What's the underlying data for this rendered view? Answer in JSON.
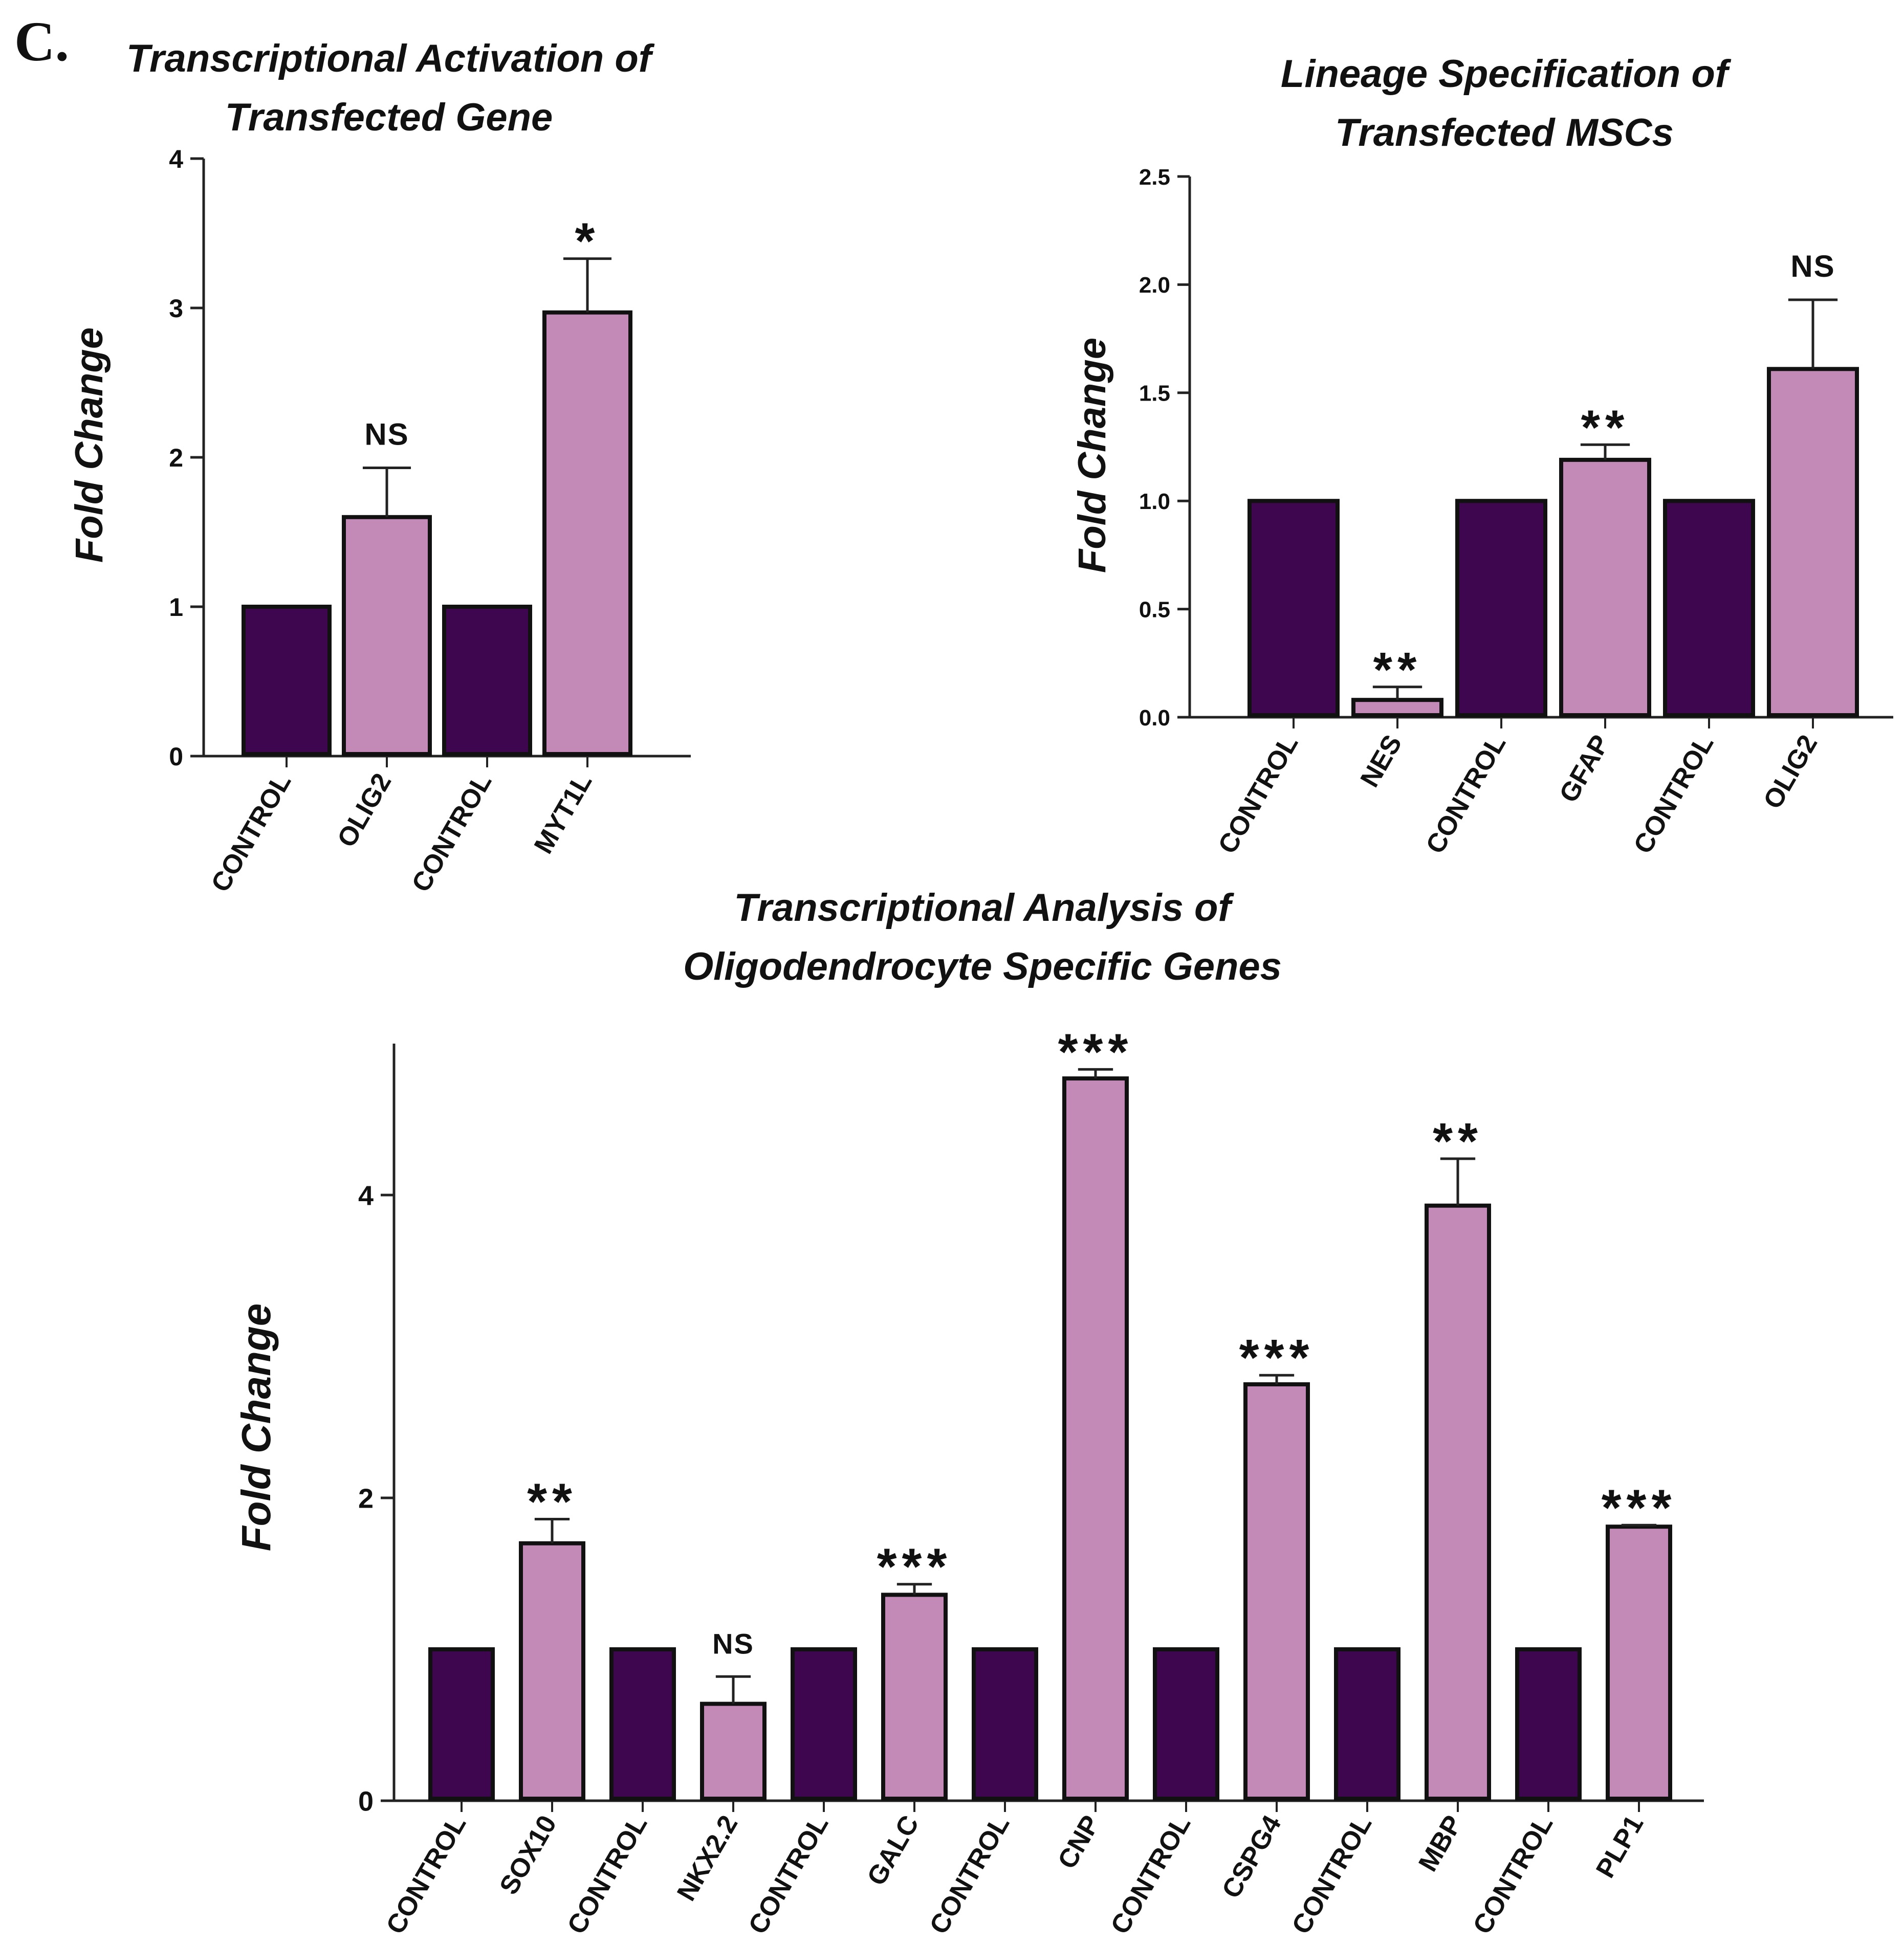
{
  "panel_label": "C.",
  "colors": {
    "control_bar": "#3f0650",
    "treatment_bar": "#c48ab7",
    "outline": "#111111"
  },
  "chart_data": [
    {
      "type": "bar",
      "title": [
        "Transcriptional Activation of",
        "Transfected Gene"
      ],
      "xlabel": "",
      "ylabel": "Fold Change",
      "ylim": [
        0,
        4
      ],
      "yticks": [
        "0",
        "1",
        "2",
        "3",
        "4"
      ],
      "grid": false,
      "categories": [
        "CONTROL",
        "OLIG2",
        "CONTROL",
        "MYT1L"
      ],
      "values": [
        1.0,
        1.6,
        1.0,
        2.97
      ],
      "errors": [
        0,
        0.33,
        0,
        0.36
      ],
      "groups": [
        "control",
        "treatment",
        "control",
        "treatment"
      ],
      "significance": [
        "",
        "NS",
        "",
        "*"
      ]
    },
    {
      "type": "bar",
      "title": [
        "Lineage Specification of",
        "Transfected MSCs"
      ],
      "xlabel": "",
      "ylabel": "Fold Change",
      "ylim": [
        0,
        2.5
      ],
      "yticks": [
        "0.0",
        "0.5",
        "1.0",
        "1.5",
        "2.0",
        "2.5"
      ],
      "grid": false,
      "categories": [
        "CONTROL",
        "NES",
        "CONTROL",
        "GFAP",
        "CONTROL",
        "OLIG2"
      ],
      "values": [
        1.0,
        0.08,
        1.0,
        1.19,
        1.0,
        1.61
      ],
      "errors": [
        0,
        0.06,
        0,
        0.07,
        0,
        0.32
      ],
      "groups": [
        "control",
        "treatment",
        "control",
        "treatment",
        "control",
        "treatment"
      ],
      "significance": [
        "",
        "**",
        "",
        "**",
        "",
        "NS"
      ]
    },
    {
      "type": "bar",
      "title": [
        "Transcriptional Analysis of",
        "Oligodendrocyte Specific Genes"
      ],
      "xlabel": "",
      "ylabel": "Fold Change",
      "ylim": [
        0,
        5
      ],
      "yticks": [
        "0",
        "2",
        "4"
      ],
      "grid": false,
      "categories": [
        "CONTROL",
        "SOX10",
        "CONTROL",
        "NKX2.2",
        "CONTROL",
        "GALC",
        "CONTROL",
        "CNP",
        "CONTROL",
        "CSPG4",
        "CONTROL",
        "MBP",
        "CONTROL",
        "PLP1"
      ],
      "values": [
        1.0,
        1.7,
        1.0,
        0.64,
        1.0,
        1.36,
        1.0,
        4.77,
        1.0,
        2.75,
        1.0,
        3.93,
        1.0,
        1.81
      ],
      "errors": [
        0,
        0.16,
        0,
        0.18,
        0,
        0.07,
        0,
        0.06,
        0,
        0.06,
        0,
        0.31,
        0,
        0.01
      ],
      "groups": [
        "control",
        "treatment",
        "control",
        "treatment",
        "control",
        "treatment",
        "control",
        "treatment",
        "control",
        "treatment",
        "control",
        "treatment",
        "control",
        "treatment"
      ],
      "significance": [
        "",
        "**",
        "",
        "NS",
        "",
        "***",
        "",
        "***",
        "",
        "***",
        "",
        "**",
        "",
        "***"
      ]
    }
  ]
}
